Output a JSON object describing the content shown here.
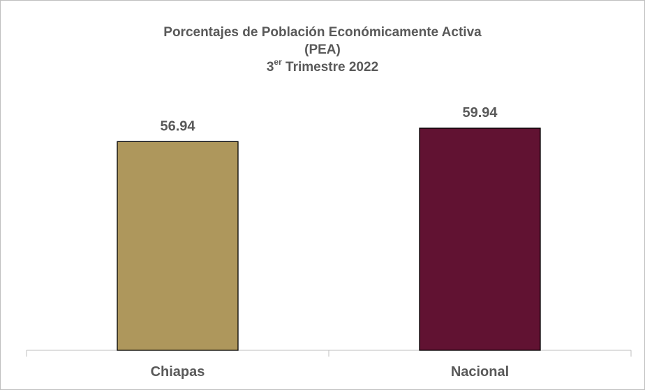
{
  "chart_data": {
    "type": "bar",
    "title_line1": "Porcentajes de Población Económicamente Activa",
    "title_line2": "(PEA)",
    "title_line3_num": "3",
    "title_line3_sup": "er",
    "title_line3_rest": " Trimestre 2022",
    "categories": [
      "Chiapas",
      "Nacional"
    ],
    "values": [
      56.94,
      59.94
    ],
    "value_labels": [
      "56.94",
      "59.94"
    ],
    "colors": [
      "#ae975c",
      "#611232"
    ],
    "ylim": [
      0,
      100
    ],
    "grid": false,
    "legend": "none"
  }
}
